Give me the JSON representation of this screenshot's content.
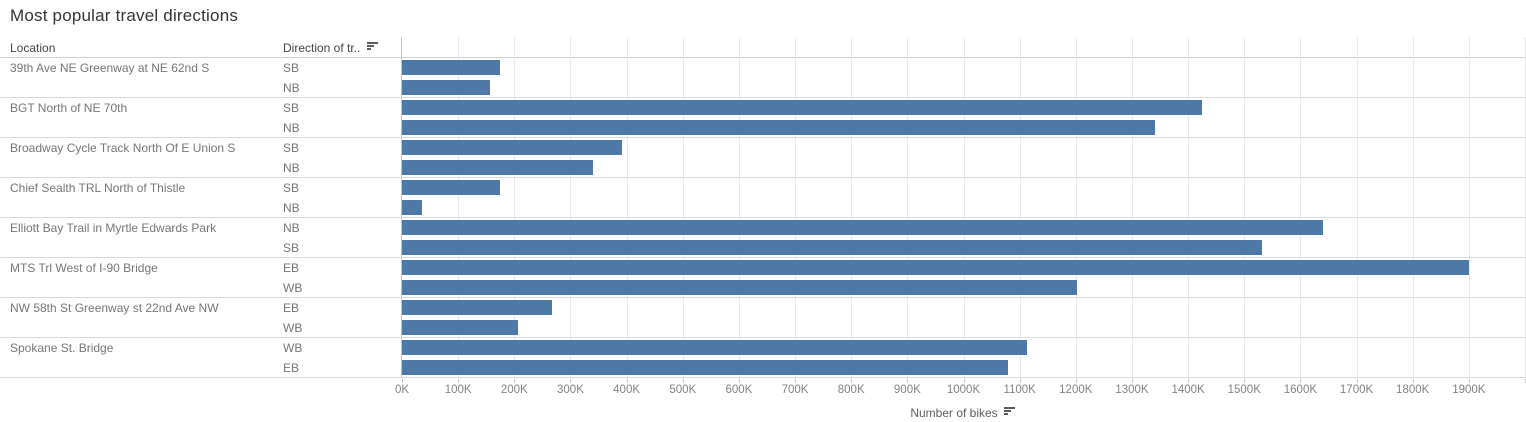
{
  "title": "Most popular travel directions",
  "table": {
    "location_header": "Location",
    "direction_header": "Direction of tr..",
    "sort_icon": "sort-descending-icon"
  },
  "axis": {
    "title": "Number of bikes",
    "tick_labels": [
      "0K",
      "100K",
      "200K",
      "300K",
      "400K",
      "500K",
      "600K",
      "700K",
      "800K",
      "900K",
      "1000K",
      "1100K",
      "1200K",
      "1300K",
      "1400K",
      "1500K",
      "1600K",
      "1700K",
      "1800K",
      "1900K"
    ],
    "tick_step_k": 100,
    "max_k": 2000
  },
  "colors": {
    "bar": "#4e79a7",
    "gridline": "#e9e9e9",
    "separator": "#d9d9d9",
    "axis_line": "#c6c6c6"
  },
  "chart_data": {
    "type": "bar",
    "orientation": "horizontal",
    "title": "Most popular travel directions",
    "xlabel": "Number of bikes",
    "xlim": [
      0,
      2000000
    ],
    "grid": true,
    "legend": "none",
    "groups": [
      {
        "location": "39th Ave NE Greenway at NE 62nd S",
        "bars": [
          {
            "direction": "SB",
            "value": 174000
          },
          {
            "direction": "NB",
            "value": 156000
          }
        ]
      },
      {
        "location": "BGT North of NE 70th",
        "bars": [
          {
            "direction": "SB",
            "value": 1424000
          },
          {
            "direction": "NB",
            "value": 1341000
          }
        ]
      },
      {
        "location": "Broadway Cycle Track North Of E Union S",
        "bars": [
          {
            "direction": "SB",
            "value": 391000
          },
          {
            "direction": "NB",
            "value": 341000
          }
        ]
      },
      {
        "location": "Chief Sealth TRL North of Thistle",
        "bars": [
          {
            "direction": "SB",
            "value": 175000
          },
          {
            "direction": "NB",
            "value": 35000
          }
        ]
      },
      {
        "location": "Elliott Bay Trail in Myrtle Edwards Park",
        "bars": [
          {
            "direction": "NB",
            "value": 1640000
          },
          {
            "direction": "SB",
            "value": 1531000
          }
        ]
      },
      {
        "location": "MTS Trl West of I-90 Bridge",
        "bars": [
          {
            "direction": "EB",
            "value": 1900000
          },
          {
            "direction": "WB",
            "value": 1202000
          }
        ]
      },
      {
        "location": "NW 58th St Greenway st 22nd Ave NW",
        "bars": [
          {
            "direction": "EB",
            "value": 268000
          },
          {
            "direction": "WB",
            "value": 206000
          }
        ]
      },
      {
        "location": "Spokane St. Bridge",
        "bars": [
          {
            "direction": "WB",
            "value": 1113000
          },
          {
            "direction": "EB",
            "value": 1079000
          }
        ]
      }
    ]
  }
}
